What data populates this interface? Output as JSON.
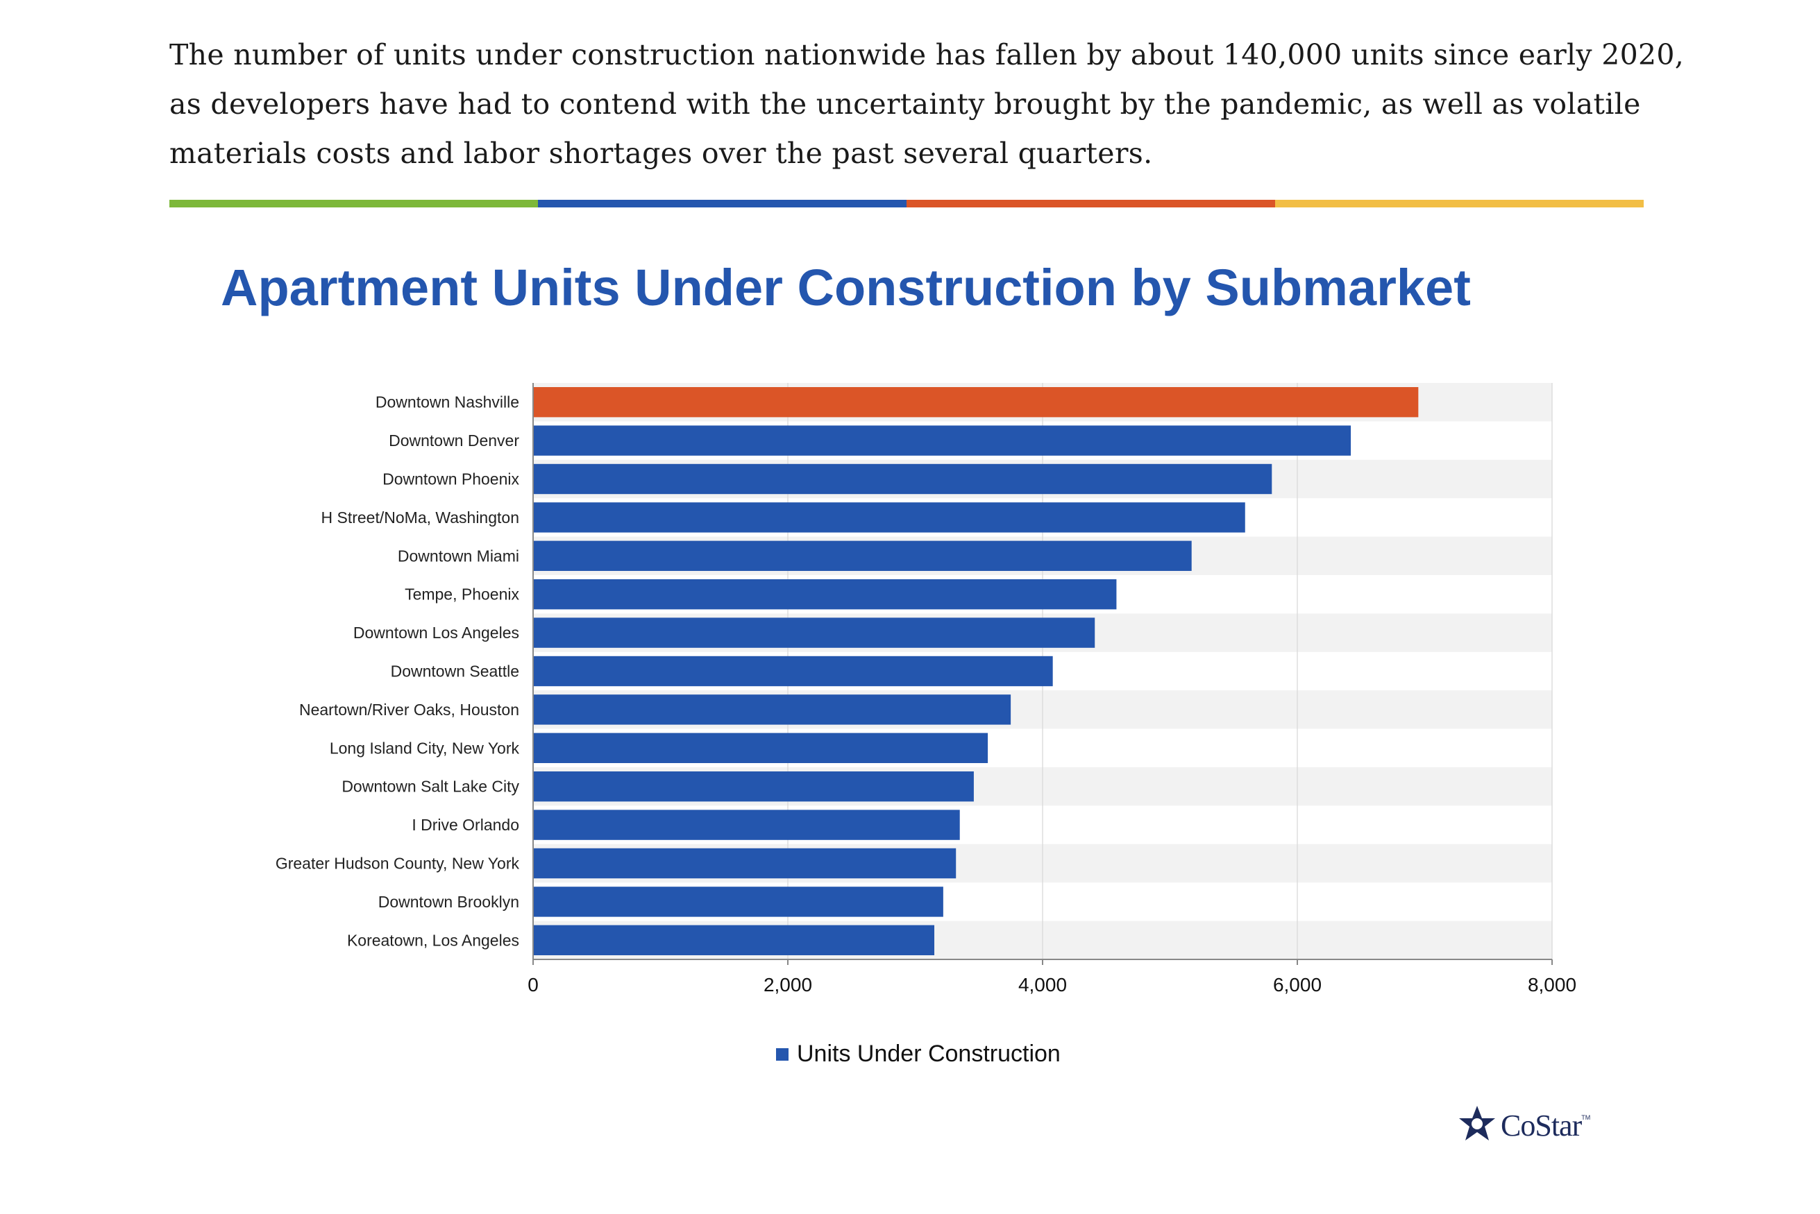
{
  "article": {
    "paragraph": "The number of units under construction nationwide has fallen by about 140,000 units since early 2020, as developers have had to contend with the uncertainty brought by the pandemic, as well as volatile materials costs and labor shortages over the past several quarters."
  },
  "divider_colors": [
    "#7DB83A",
    "#2456AE",
    "#DB5527",
    "#F2BE45"
  ],
  "chart_data": {
    "type": "bar",
    "orientation": "horizontal",
    "title": "Apartment Units Under Construction by Submarket",
    "categories": [
      "Downtown Nashville",
      "Downtown Denver",
      "Downtown Phoenix",
      "H Street/NoMa, Washington",
      "Downtown Miami",
      "Tempe, Phoenix",
      "Downtown Los Angeles",
      "Downtown Seattle",
      "Neartown/River Oaks, Houston",
      "Long Island City, New York",
      "Downtown Salt Lake City",
      "I Drive Orlando",
      "Greater Hudson County, New York",
      "Downtown Brooklyn",
      "Koreatown, Los Angeles"
    ],
    "series": [
      {
        "name": "Units Under Construction",
        "values": [
          6950,
          6420,
          5800,
          5590,
          5170,
          4580,
          4410,
          4080,
          3750,
          3570,
          3460,
          3350,
          3320,
          3220,
          3150
        ]
      }
    ],
    "xlim": [
      0,
      8000
    ],
    "xticks": [
      "0",
      "2,000",
      "4,000",
      "6,000",
      "8,000"
    ],
    "xtick_values": [
      0,
      2000,
      4000,
      6000,
      8000
    ],
    "grid": true,
    "legend_position": "bottom",
    "bar_color": "#2456AE",
    "highlight_color": "#DB5527",
    "highlight_index": 0,
    "band_color": "#F2F2F2"
  },
  "logo": {
    "text": "CoStar",
    "tm": "TM"
  }
}
